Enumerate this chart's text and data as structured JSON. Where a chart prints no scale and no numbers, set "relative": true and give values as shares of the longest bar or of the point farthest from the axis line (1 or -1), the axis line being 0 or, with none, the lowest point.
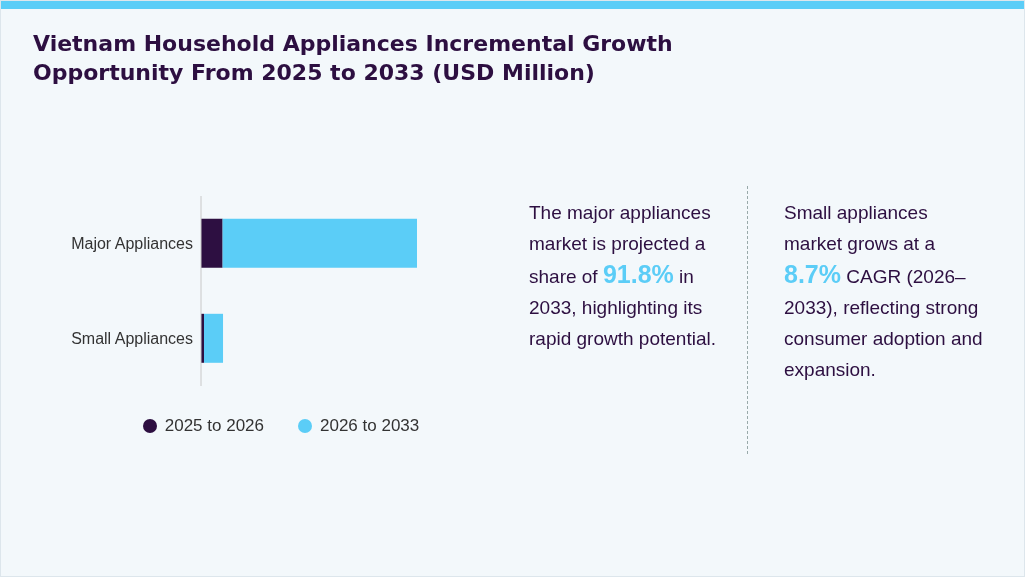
{
  "chart_data": {
    "type": "bar",
    "title": "Vietnam Household Appliances Incremental Growth Opportunity From 2025 to 2033 (USD Million)",
    "orientation": "horizontal",
    "stacked": true,
    "relative": true,
    "categories": [
      "Major Appliances",
      "Small Appliances"
    ],
    "series": [
      {
        "name": "2025 to 2026",
        "color": "#2d0f41",
        "values": [
          0.1,
          0.014
        ]
      },
      {
        "name": "2026 to 2033",
        "color": "#5bcdf7",
        "values": [
          0.9,
          0.088
        ]
      }
    ],
    "legend": "bottom",
    "grid": false,
    "annotations": [
      "The major appliances market is projected a share of 91.8% in 2033, highlighting its rapid growth potential.",
      "Small appliances market grows at a 8.7% CAGR (2026–2033), reflecting strong consumer adoption and expansion."
    ]
  }
}
